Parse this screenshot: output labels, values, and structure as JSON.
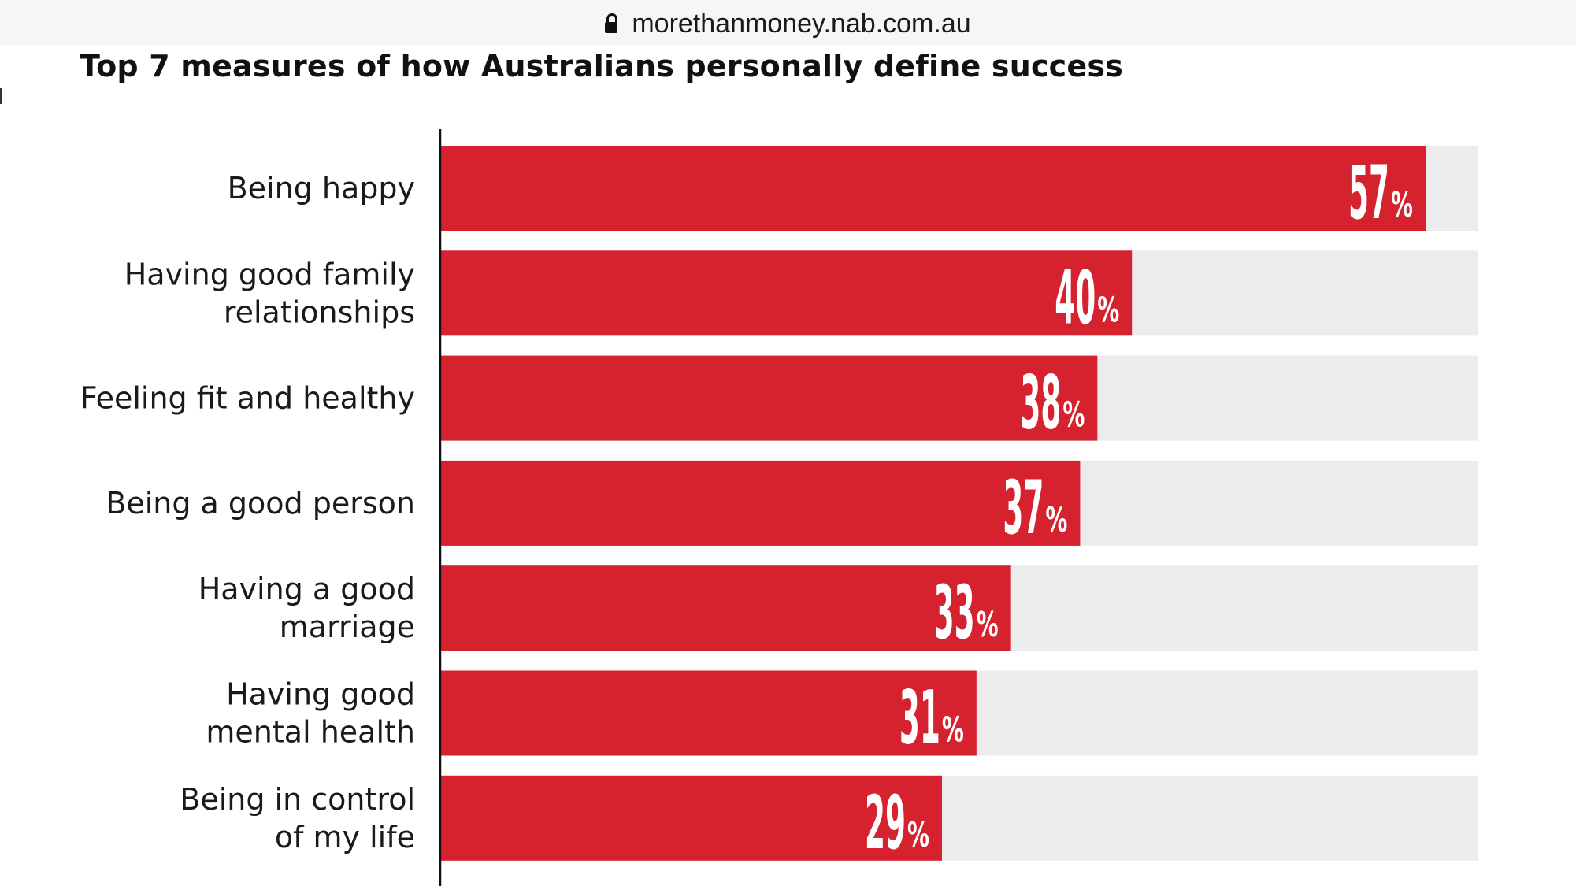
{
  "browser": {
    "url": "morethanmoney.nab.com.au",
    "lock_icon": "lock-icon"
  },
  "colors": {
    "bar": "#d6212f",
    "track": "#ececec",
    "axis": "#111111",
    "label_text": "#1a1a1a",
    "value_text": "#ffffff"
  },
  "chart_data": {
    "type": "bar",
    "orientation": "horizontal",
    "title": "Top 7 measures of how Australians personally define success",
    "categories": [
      [
        "Being happy"
      ],
      [
        "Having good family",
        "relationships"
      ],
      [
        "Feeling fit and healthy"
      ],
      [
        "Being a good person"
      ],
      [
        "Having a good",
        "marriage"
      ],
      [
        "Having good",
        "mental health"
      ],
      [
        "Being in control",
        "of my life"
      ]
    ],
    "values": [
      57,
      40,
      38,
      37,
      33,
      31,
      29
    ],
    "value_suffix": "%",
    "xlim": [
      0,
      60
    ],
    "xlabel": "",
    "ylabel": "",
    "grid": false,
    "legend": "none"
  }
}
